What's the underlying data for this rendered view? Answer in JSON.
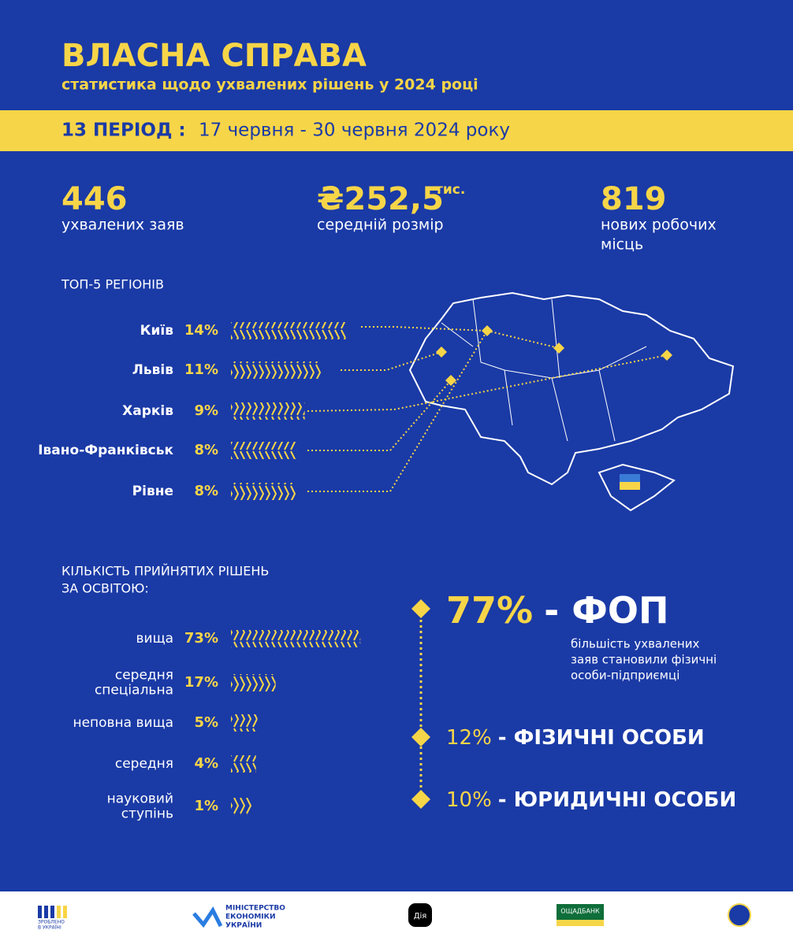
{
  "header": {
    "title": "ВЛАСНА СПРАВА",
    "subtitle": "статистика щодо ухвалених рішень у 2024 році"
  },
  "period": {
    "label": "13 ПЕРІОД :",
    "dates": "17 червня - 30 червня 2024 року"
  },
  "stats": [
    {
      "value": "446",
      "label": "ухвалених заяв"
    },
    {
      "value": "₴252,5",
      "unit": "тис.",
      "label": "середній розмір"
    },
    {
      "value": "819",
      "label": "нових робочих",
      "label2": "місць"
    }
  ],
  "regions": {
    "title": "ТОП-5 РЕГІОНІВ",
    "items": [
      {
        "name": "Київ",
        "value": 14,
        "label": "14%"
      },
      {
        "name": "Львів",
        "value": 11,
        "label": "11%"
      },
      {
        "name": "Харків",
        "value": 9,
        "label": "9%"
      },
      {
        "name": "Івано-Франківськ",
        "value": 8,
        "label": "8%"
      },
      {
        "name": "Рівне",
        "value": 8,
        "label": "8%"
      }
    ]
  },
  "education": {
    "title": "КІЛЬКІСТЬ ПРИЙНЯТИХ РІШЕНЬ",
    "title2": "ЗА ОСВІТОЮ:",
    "items": [
      {
        "name": [
          "вища"
        ],
        "value": 73,
        "label": "73%"
      },
      {
        "name": [
          "середня",
          "спеціальна"
        ],
        "value": 17,
        "label": "17%"
      },
      {
        "name": [
          "неповна вища"
        ],
        "value": 5,
        "label": "5%"
      },
      {
        "name": [
          "середня"
        ],
        "value": 4,
        "label": "4%"
      },
      {
        "name": [
          "науковий",
          "ступінь"
        ],
        "value": 1,
        "label": "1%"
      }
    ]
  },
  "types": [
    {
      "percent": "77%",
      "name": "- ФОП",
      "note": [
        "більшість ухвалених",
        "заяв становили фізичні",
        "особи-підприємці"
      ]
    },
    {
      "percent": "12%",
      "name": "- ФІЗИЧНІ ОСОБИ"
    },
    {
      "percent": "10%",
      "name": "- ЮРИДИЧНІ ОСОБИ"
    }
  ],
  "footer": {
    "made": [
      "ЗРОБЛЕНО",
      "В УКРАЇНІ"
    ],
    "ministry": [
      "МІНІСТЕРСТВО",
      "ЕКОНОМІКИ",
      "УКРАЇНИ"
    ],
    "diia": "Дія",
    "bank": "ОЩАДБАНК"
  }
}
